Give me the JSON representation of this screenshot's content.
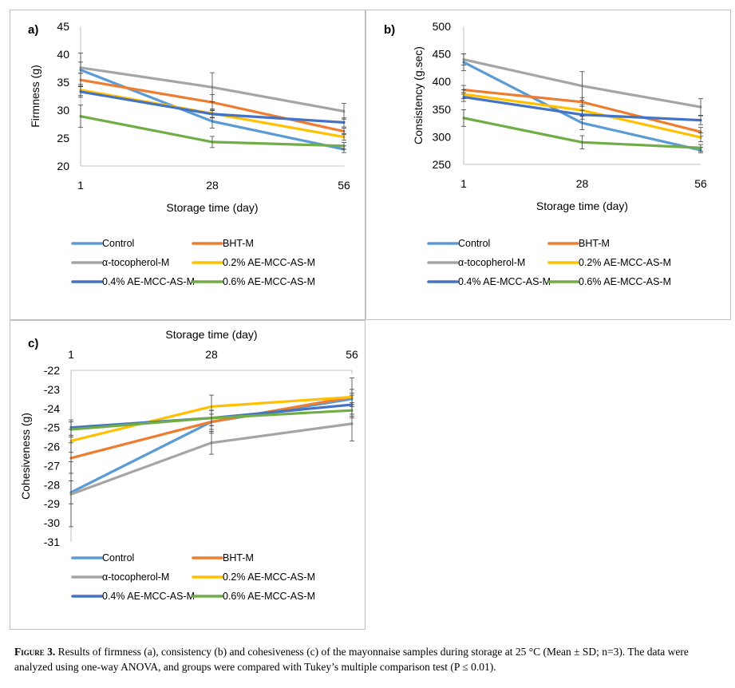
{
  "caption": {
    "label": "Figure 3.",
    "text": "Results of firmness (a), consistency (b) and cohesiveness (c) of the mayonnaise samples during storage at 25 °C (Mean ± SD; n=3). The data were analyzed using one-way ANOVA, and groups were compared with Tukey’s multiple comparison test (P ≤ 0.01)."
  },
  "series_colors": {
    "Control": "#5b9bd5",
    "BHT-M": "#ed7d31",
    "α-tocopherol-M": "#a5a5a5",
    "0.2% AE-MCC-AS-M": "#ffc000",
    "0.4% AE-MCC-AS-M": "#4472c4",
    "0.6% AE-MCC-AS-M": "#70ad47"
  },
  "chart_data": [
    {
      "panel_label": "a)",
      "type": "line",
      "xlabel": "Storage time (day)",
      "ylabel": "Firmness (g)",
      "x": [
        "1",
        "28",
        "56"
      ],
      "ylim": [
        20,
        45
      ],
      "yticks": [
        "20",
        "25",
        "30",
        "35",
        "40",
        "45"
      ],
      "grid": false,
      "legend": "bottom",
      "series": [
        {
          "name": "Control",
          "values": [
            37.2,
            28.0,
            23.0
          ],
          "error": [
            3.0,
            1.2,
            0.6
          ]
        },
        {
          "name": "BHT-M",
          "values": [
            35.4,
            31.4,
            26.2
          ],
          "error": [
            1.2,
            1.4,
            0.6
          ]
        },
        {
          "name": "α-tocopherol-M",
          "values": [
            37.6,
            34.1,
            29.8
          ],
          "error": [
            1.0,
            2.6,
            1.4
          ]
        },
        {
          "name": "0.2% AE-MCC-AS-M",
          "values": [
            33.6,
            29.4,
            25.2
          ],
          "error": [
            1.0,
            0.8,
            0.6
          ]
        },
        {
          "name": "0.4% AE-MCC-AS-M",
          "values": [
            33.3,
            29.3,
            27.8
          ],
          "error": [
            1.0,
            0.6,
            0.8
          ]
        },
        {
          "name": "0.6% AE-MCC-AS-M",
          "values": [
            28.9,
            24.3,
            23.6
          ],
          "error": [
            2.0,
            1.0,
            0.6
          ]
        }
      ]
    },
    {
      "panel_label": "b)",
      "type": "line",
      "xlabel": "Storage time (day)",
      "ylabel": "Consistency (g.sec)",
      "x": [
        "1",
        "28",
        "56"
      ],
      "ylim": [
        250,
        500
      ],
      "yticks": [
        "250",
        "300",
        "350",
        "400",
        "450",
        "500"
      ],
      "grid": false,
      "legend": "bottom",
      "series": [
        {
          "name": "Control",
          "values": [
            435,
            325,
            276
          ],
          "error": [
            15,
            12,
            5
          ]
        },
        {
          "name": "BHT-M",
          "values": [
            385,
            363,
            309
          ],
          "error": [
            8,
            8,
            8
          ]
        },
        {
          "name": "α-tocopherol-M",
          "values": [
            440,
            392,
            354
          ],
          "error": [
            10,
            26,
            15
          ]
        },
        {
          "name": "0.2% AE-MCC-AS-M",
          "values": [
            377,
            348,
            299
          ],
          "error": [
            8,
            10,
            8
          ]
        },
        {
          "name": "0.4% AE-MCC-AS-M",
          "values": [
            372,
            340,
            330
          ],
          "error": [
            8,
            8,
            8
          ]
        },
        {
          "name": "0.6% AE-MCC-AS-M",
          "values": [
            334,
            290,
            280
          ],
          "error": [
            15,
            12,
            6
          ]
        }
      ]
    },
    {
      "panel_label": "c)",
      "type": "line",
      "xlabel": "Storage time (day)",
      "ylabel": "Cohesiveness (g)",
      "x": [
        "1",
        "28",
        "56"
      ],
      "ylim": [
        -31,
        -22
      ],
      "yticks": [
        "-22",
        "-23",
        "-24",
        "-25",
        "-26",
        "-27",
        "-28",
        "-29",
        "-30",
        "-31"
      ],
      "grid": false,
      "legend": "bottom",
      "series": [
        {
          "name": "Control",
          "values": [
            -28.4,
            -24.7,
            -23.5
          ],
          "error": [
            0.6,
            0.4,
            0.3
          ]
        },
        {
          "name": "BHT-M",
          "values": [
            -26.6,
            -24.7,
            -23.4
          ],
          "error": [
            0.8,
            0.6,
            0.4
          ]
        },
        {
          "name": "α-tocopherol-M",
          "values": [
            -28.5,
            -25.8,
            -24.8
          ],
          "error": [
            1.7,
            0.6,
            0.9
          ]
        },
        {
          "name": "0.2% AE-MCC-AS-M",
          "values": [
            -25.7,
            -23.9,
            -23.4
          ],
          "error": [
            0.6,
            0.6,
            1.0
          ]
        },
        {
          "name": "0.4% AE-MCC-AS-M",
          "values": [
            -25.0,
            -24.5,
            -23.8
          ],
          "error": [
            0.4,
            0.4,
            0.5
          ]
        },
        {
          "name": "0.6% AE-MCC-AS-M",
          "values": [
            -25.1,
            -24.5,
            -24.1
          ],
          "error": [
            0.4,
            0.4,
            0.4
          ]
        }
      ]
    }
  ]
}
